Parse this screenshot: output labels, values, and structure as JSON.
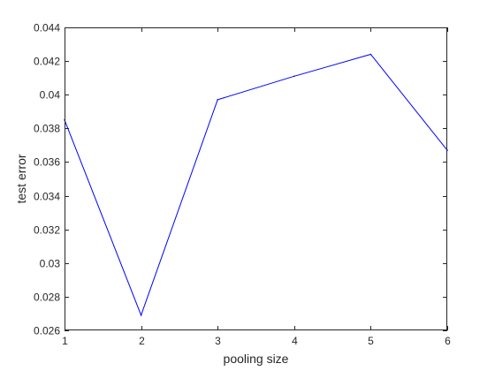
{
  "chart_data": {
    "type": "line",
    "title": "",
    "xlabel": "pooling size",
    "ylabel": "test error",
    "xlim": [
      1,
      6
    ],
    "ylim": [
      0.026,
      0.044
    ],
    "grid": false,
    "x_ticks": [
      {
        "value": 1,
        "label": "1"
      },
      {
        "value": 2,
        "label": "2"
      },
      {
        "value": 3,
        "label": "3"
      },
      {
        "value": 4,
        "label": "4"
      },
      {
        "value": 5,
        "label": "5"
      },
      {
        "value": 6,
        "label": "6"
      }
    ],
    "y_ticks": [
      {
        "value": 0.026,
        "label": "0.026"
      },
      {
        "value": 0.028,
        "label": "0.028"
      },
      {
        "value": 0.03,
        "label": "0.03"
      },
      {
        "value": 0.032,
        "label": "0.032"
      },
      {
        "value": 0.034,
        "label": "0.034"
      },
      {
        "value": 0.036,
        "label": "0.036"
      },
      {
        "value": 0.038,
        "label": "0.038"
      },
      {
        "value": 0.04,
        "label": "0.04"
      },
      {
        "value": 0.042,
        "label": "0.042"
      },
      {
        "value": 0.044,
        "label": "0.044"
      }
    ],
    "series": [
      {
        "color": "#0000ff",
        "x": [
          1,
          2,
          3,
          4,
          5,
          6
        ],
        "values": [
          0.0385,
          0.0269,
          0.0397,
          0.0411,
          0.0424,
          0.0367
        ]
      }
    ]
  }
}
